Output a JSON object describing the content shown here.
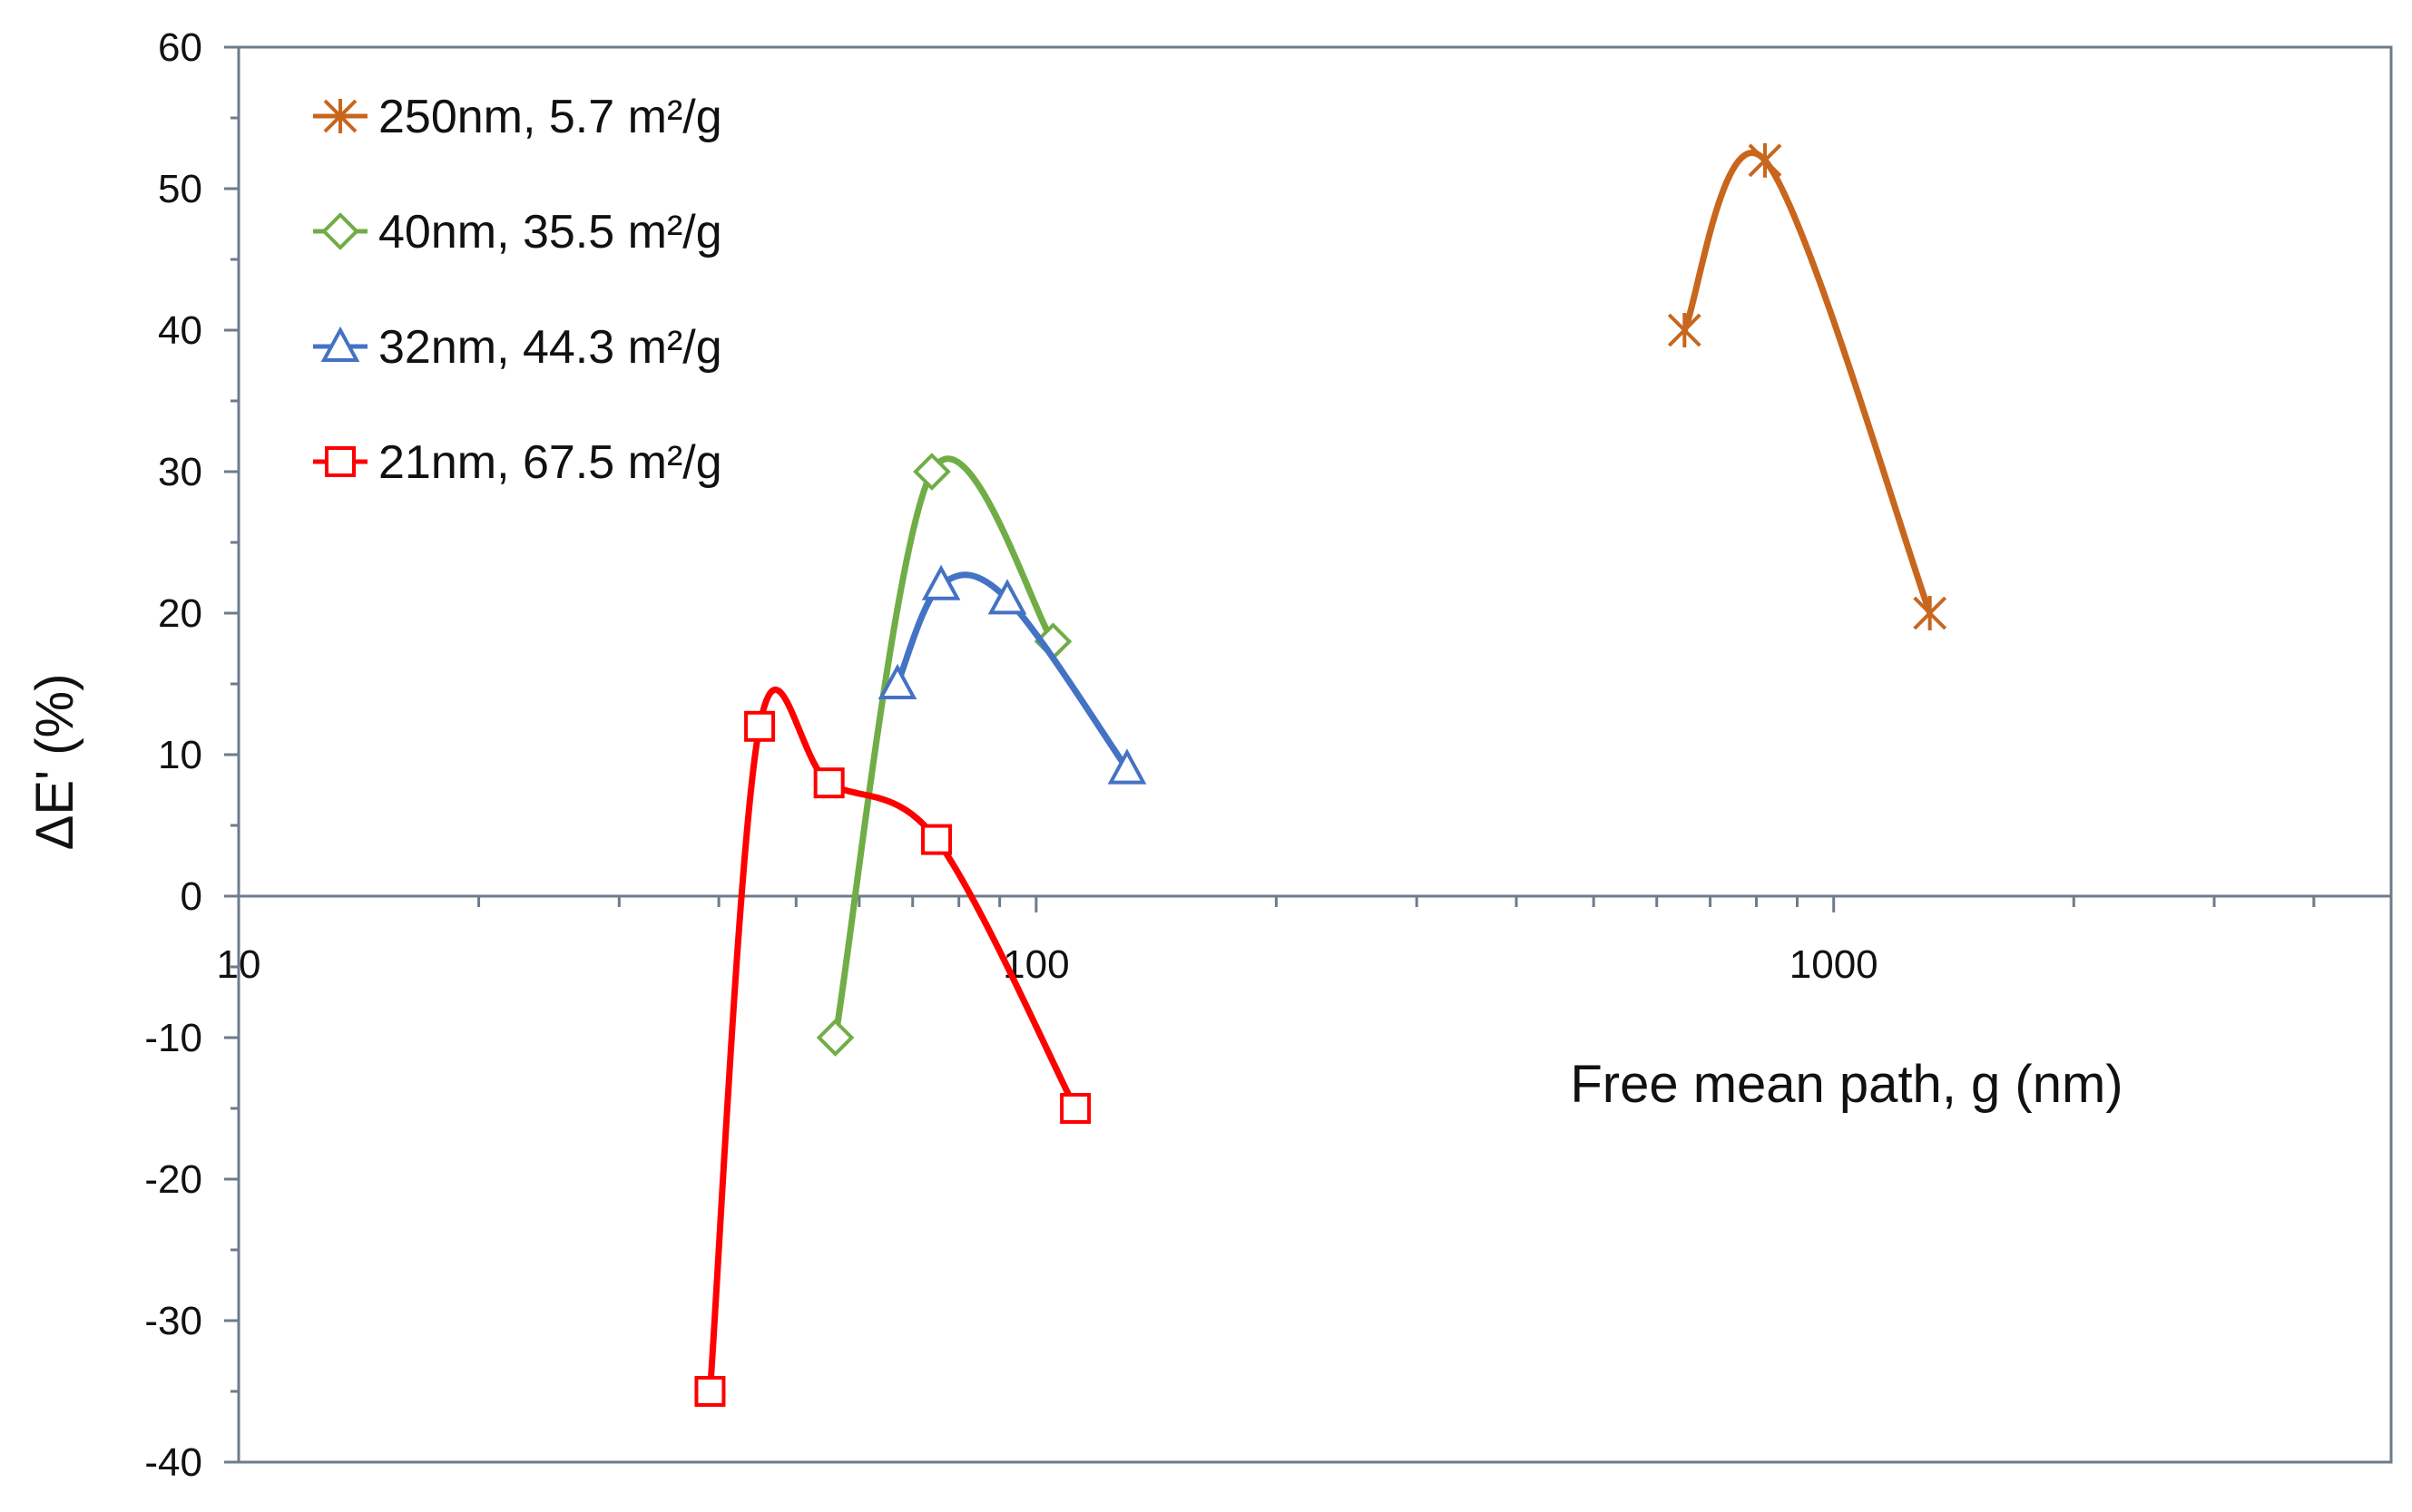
{
  "chart_data": {
    "type": "line",
    "x_scale": "log",
    "xlabel": "Free mean path, g (nm)",
    "ylabel": "ΔE' (%)",
    "xlim": [
      10,
      5000
    ],
    "ylim": [
      -40,
      60
    ],
    "y_ticks": [
      60,
      50,
      40,
      30,
      20,
      10,
      0,
      -10,
      -20,
      -30,
      -40
    ],
    "x_tick_labels": [
      {
        "value": 10,
        "label": "10"
      },
      {
        "value": 100,
        "label": "100"
      },
      {
        "value": 1000,
        "label": "1000"
      }
    ],
    "legend_position": "top-left",
    "series": [
      {
        "name": "250nm, 5.7 m²/g",
        "marker": "asterisk",
        "color": "#c8661e",
        "x": [
          650,
          820,
          1320
        ],
        "y": [
          40,
          52,
          20
        ]
      },
      {
        "name": "40nm, 35.5 m²/g",
        "marker": "diamond",
        "color": "#70ad47",
        "x": [
          56,
          74,
          105
        ],
        "y": [
          -10,
          30,
          18
        ]
      },
      {
        "name": "32nm, 44.3 m²/g",
        "marker": "triangle",
        "color": "#4472c4",
        "x": [
          67,
          76,
          92,
          130
        ],
        "y": [
          15,
          22,
          21,
          9
        ]
      },
      {
        "name": "21nm, 67.5 m²/g",
        "marker": "square",
        "color": "#ff0000",
        "x": [
          39,
          45,
          55,
          75,
          112
        ],
        "y": [
          -35,
          12,
          8,
          4,
          -15
        ]
      }
    ]
  }
}
